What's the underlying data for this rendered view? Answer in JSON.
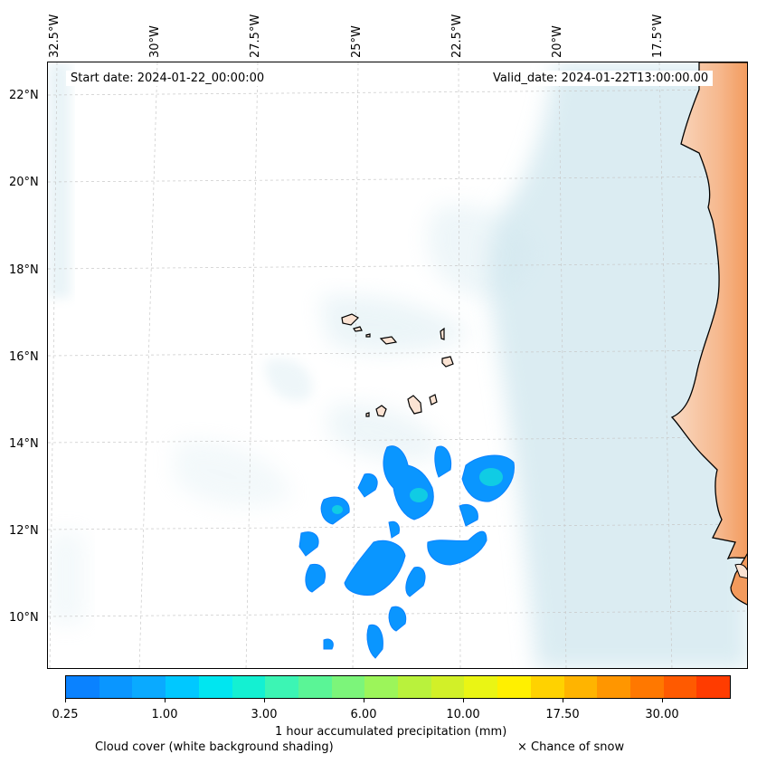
{
  "map": {
    "start_date": "Start date: 2024-01-22_00:00:00",
    "valid_date": "Valid_date: 2024-01-22T13:00:00.00",
    "longitude_labels": [
      "32.5°W",
      "30°W",
      "27.5°W",
      "25°W",
      "22.5°W",
      "20°W",
      "17.5°W"
    ],
    "latitude_labels": [
      "22°N",
      "20°N",
      "18°N",
      "16°N",
      "14°N",
      "12°N",
      "10°N"
    ],
    "colors": {
      "land": "#fbe3d3",
      "land_warm": "#f7a36b",
      "cloud": "#cfe6ee",
      "coast": "#000000"
    }
  },
  "colorbar": {
    "colors": [
      "#0a82ff",
      "#0a96ff",
      "#0aaaff",
      "#00c8ff",
      "#00e6f0",
      "#14f0d2",
      "#3cf5b4",
      "#5af596",
      "#7cf57a",
      "#9cf55a",
      "#b9f23c",
      "#d2f028",
      "#eaf514",
      "#fff000",
      "#ffd200",
      "#ffb400",
      "#ff9600",
      "#ff7800",
      "#ff5a00",
      "#ff3c00"
    ],
    "tick_labels": [
      "0.25",
      "1.00",
      "3.00",
      "6.00",
      "10.00",
      "17.50",
      "30.00"
    ],
    "label": "1 hour accumulated precipitation (mm)"
  },
  "footer": {
    "cloud_note": "Cloud cover (white background shading)",
    "snow_note": "× Chance of snow"
  }
}
